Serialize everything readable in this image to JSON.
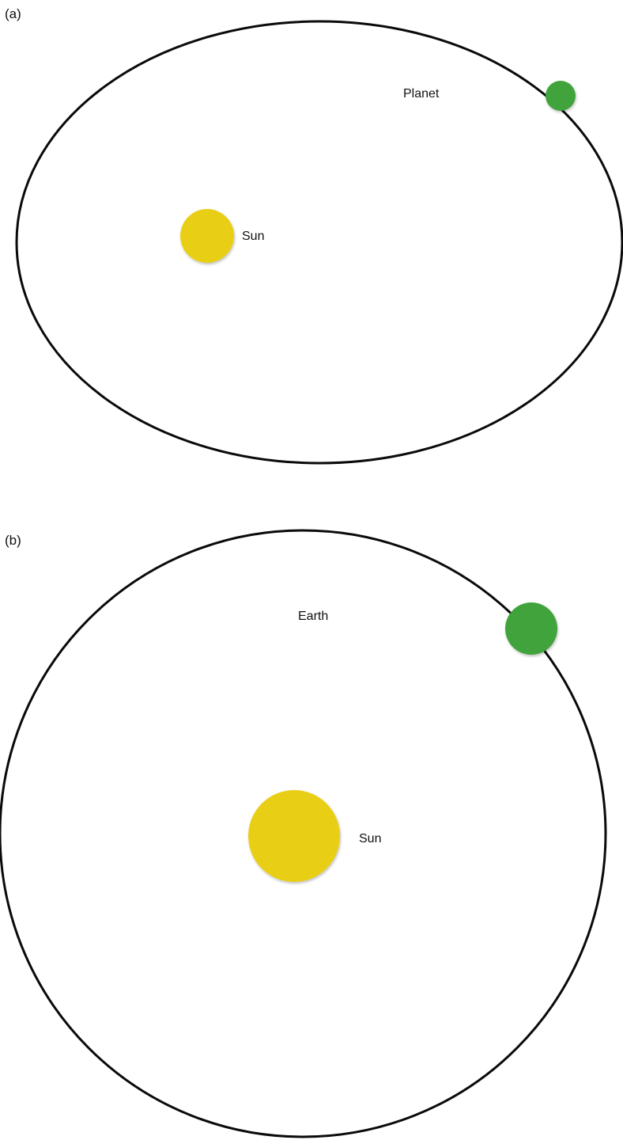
{
  "colors": {
    "sun": "#e8cf12",
    "planet": "#3fa33b",
    "orbit": "#0a0a0a",
    "background": "#ffffff"
  },
  "panels": [
    {
      "label": "(a)",
      "orbit_shape": "ellipse",
      "planet_label": "Planet",
      "sun_label": "Sun"
    },
    {
      "label": "(b)",
      "orbit_shape": "circle",
      "planet_label": "Earth",
      "sun_label": "Sun"
    }
  ]
}
